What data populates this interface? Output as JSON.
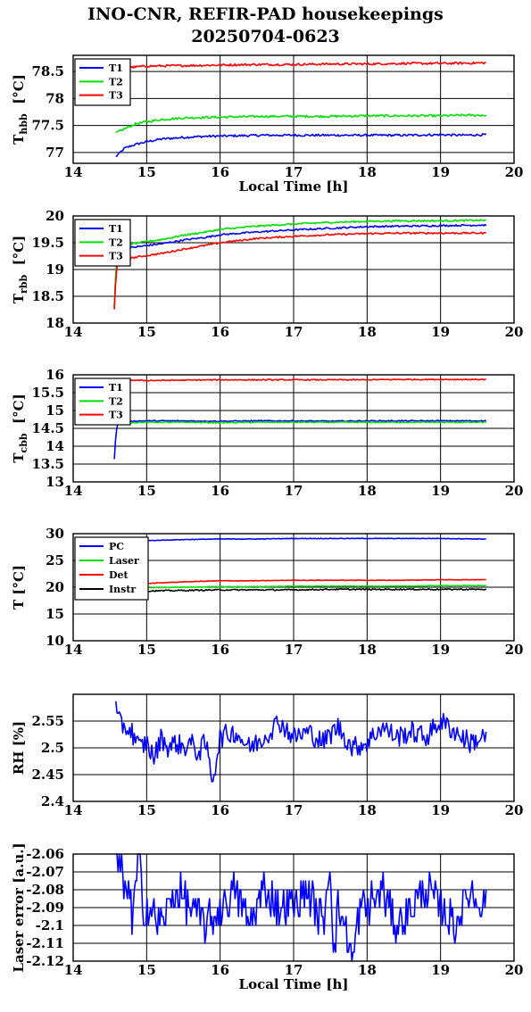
{
  "title": "INO-CNR, REFIR-PAD housekeepings",
  "subtitle": "20250704-0623",
  "chart_data": [
    {
      "type": "line",
      "title": "",
      "xlabel": "Local Time [h]",
      "ylabel": "T",
      "ylabel_sub": "hbb",
      "ylabel_unit": "[°C]",
      "xlim": [
        14,
        20
      ],
      "ylim": [
        76.8,
        78.8
      ],
      "xticks": [
        "14",
        "15",
        "16",
        "17",
        "18",
        "19",
        "20"
      ],
      "yticks": [
        77,
        77.5,
        78,
        78.5
      ],
      "ytick_labels": [
        "77",
        "77.5",
        "78",
        "78.5"
      ],
      "grid": true,
      "legend": "top-left",
      "series": [
        {
          "name": "T1",
          "color": "#0000ff",
          "x": [
            14.58,
            14.7,
            14.85,
            15.0,
            15.2,
            15.5,
            15.8,
            16.2,
            16.6,
            17.0,
            17.5,
            18.0,
            18.5,
            19.0,
            19.3,
            19.62
          ],
          "y": [
            76.92,
            77.08,
            77.15,
            77.2,
            77.25,
            77.28,
            77.3,
            77.31,
            77.32,
            77.32,
            77.32,
            77.32,
            77.32,
            77.33,
            77.32,
            77.33
          ],
          "noise": 0.02
        },
        {
          "name": "T2",
          "color": "#00e000",
          "x": [
            14.58,
            14.7,
            14.85,
            15.0,
            15.2,
            15.5,
            15.8,
            16.2,
            16.6,
            17.0,
            17.5,
            18.0,
            18.5,
            19.0,
            19.3,
            19.62
          ],
          "y": [
            77.36,
            77.44,
            77.53,
            77.57,
            77.61,
            77.64,
            77.65,
            77.66,
            77.67,
            77.67,
            77.67,
            77.68,
            77.68,
            77.68,
            77.69,
            77.69
          ],
          "noise": 0.02
        },
        {
          "name": "T3",
          "color": "#ff0000",
          "x": [
            14.58,
            14.8,
            15.0,
            15.5,
            16.0,
            16.5,
            17.0,
            17.5,
            18.0,
            18.5,
            19.0,
            19.62
          ],
          "y": [
            78.55,
            78.58,
            78.6,
            78.61,
            78.62,
            78.63,
            78.63,
            78.64,
            78.64,
            78.65,
            78.65,
            78.66
          ],
          "noise": 0.02
        }
      ]
    },
    {
      "type": "line",
      "title": "",
      "xlabel": "",
      "ylabel": "T",
      "ylabel_sub": "rbb",
      "ylabel_unit": "[°C]",
      "xlim": [
        14,
        20
      ],
      "ylim": [
        18,
        20
      ],
      "xticks": [
        "14",
        "15",
        "16",
        "17",
        "18",
        "19",
        "20"
      ],
      "yticks": [
        18,
        18.5,
        19,
        19.5,
        20
      ],
      "ytick_labels": [
        "18",
        "18.5",
        "19",
        "19.5",
        "20"
      ],
      "grid": true,
      "legend": "top-left",
      "series": [
        {
          "name": "T1",
          "color": "#0000ff",
          "x": [
            14.56,
            14.58,
            14.6,
            14.65,
            14.9,
            15.2,
            15.5,
            15.8,
            16.0,
            16.5,
            17.0,
            17.5,
            18.0,
            18.5,
            19.0,
            19.62
          ],
          "y": [
            18.3,
            18.9,
            19.3,
            19.38,
            19.43,
            19.48,
            19.55,
            19.6,
            19.65,
            19.7,
            19.74,
            19.77,
            19.8,
            19.81,
            19.82,
            19.83
          ],
          "noise": 0.015
        },
        {
          "name": "T2",
          "color": "#00e000",
          "x": [
            14.56,
            14.58,
            14.6,
            14.65,
            14.9,
            15.2,
            15.5,
            15.8,
            16.0,
            16.5,
            17.0,
            17.5,
            18.0,
            18.5,
            19.0,
            19.62
          ],
          "y": [
            18.3,
            18.95,
            19.35,
            19.43,
            19.5,
            19.56,
            19.64,
            19.7,
            19.75,
            19.81,
            19.85,
            19.88,
            19.9,
            19.91,
            19.91,
            19.92
          ],
          "noise": 0.015
        },
        {
          "name": "T3",
          "color": "#ff0000",
          "x": [
            14.56,
            14.58,
            14.6,
            14.65,
            14.9,
            15.2,
            15.5,
            15.8,
            16.0,
            16.5,
            17.0,
            17.5,
            18.0,
            18.5,
            19.0,
            19.62
          ],
          "y": [
            18.25,
            18.8,
            19.1,
            19.18,
            19.24,
            19.3,
            19.38,
            19.45,
            19.5,
            19.58,
            19.62,
            19.65,
            19.67,
            19.68,
            19.68,
            19.68
          ],
          "noise": 0.015
        }
      ]
    },
    {
      "type": "line",
      "title": "",
      "xlabel": "",
      "ylabel": "T",
      "ylabel_sub": "cbb",
      "ylabel_unit": "[°C]",
      "xlim": [
        14,
        20
      ],
      "ylim": [
        13,
        16
      ],
      "xticks": [
        "14",
        "15",
        "16",
        "17",
        "18",
        "19",
        "20"
      ],
      "yticks": [
        13,
        13.5,
        14,
        14.5,
        15,
        15.5,
        16
      ],
      "ytick_labels": [
        "13",
        "13.5",
        "14",
        "14.5",
        "15",
        "15.5",
        "16"
      ],
      "grid": true,
      "legend": "top-left",
      "series": [
        {
          "name": "T1",
          "color": "#0000ff",
          "x": [
            14.56,
            14.58,
            14.6,
            14.65,
            15.0,
            15.5,
            16.0,
            16.5,
            17.0,
            17.5,
            18.0,
            18.5,
            19.0,
            19.62
          ],
          "y": [
            13.65,
            14.3,
            14.62,
            14.7,
            14.71,
            14.71,
            14.7,
            14.71,
            14.71,
            14.7,
            14.71,
            14.71,
            14.71,
            14.71
          ],
          "noise": 0.015
        },
        {
          "name": "T2",
          "color": "#00e000",
          "x": [
            14.58,
            14.6,
            14.65,
            15.0,
            15.5,
            16.0,
            16.5,
            17.0,
            17.5,
            18.0,
            18.5,
            19.0,
            19.62
          ],
          "y": [
            14.6,
            14.65,
            14.66,
            14.67,
            14.67,
            14.66,
            14.67,
            14.67,
            14.67,
            14.67,
            14.67,
            14.67,
            14.67
          ],
          "noise": 0.015
        },
        {
          "name": "T3",
          "color": "#ff0000",
          "x": [
            14.58,
            14.8,
            15.0,
            15.5,
            16.0,
            16.5,
            17.0,
            17.5,
            18.0,
            18.5,
            19.0,
            19.62
          ],
          "y": [
            15.88,
            15.85,
            15.84,
            15.85,
            15.86,
            15.86,
            15.86,
            15.86,
            15.86,
            15.87,
            15.87,
            15.87
          ],
          "noise": 0.015
        }
      ]
    },
    {
      "type": "line",
      "title": "",
      "xlabel": "",
      "ylabel": "T [°C]",
      "ylabel_sub": "",
      "ylabel_unit": "",
      "xlim": [
        14,
        20
      ],
      "ylim": [
        10,
        30
      ],
      "xticks": [
        "14",
        "15",
        "16",
        "17",
        "18",
        "19",
        "20"
      ],
      "yticks": [
        10,
        15,
        20,
        25,
        30
      ],
      "ytick_labels": [
        "10",
        "15",
        "20",
        "25",
        "30"
      ],
      "grid": true,
      "legend": "top-left",
      "series": [
        {
          "name": "PC",
          "color": "#0000ff",
          "x": [
            14.58,
            14.8,
            15.0,
            15.5,
            16.0,
            16.5,
            17.0,
            17.5,
            18.0,
            18.5,
            19.0,
            19.62
          ],
          "y": [
            28.2,
            28.5,
            28.7,
            28.9,
            29.0,
            29.0,
            29.1,
            29.1,
            29.1,
            29.1,
            29.1,
            29.0
          ],
          "noise": 0.05
        },
        {
          "name": "Laser",
          "color": "#00e000",
          "x": [
            14.58,
            15.0,
            15.5,
            16.0,
            16.5,
            17.0,
            17.5,
            18.0,
            18.5,
            19.0,
            19.62
          ],
          "y": [
            19.7,
            19.9,
            20.0,
            20.1,
            20.1,
            20.2,
            20.2,
            20.2,
            20.2,
            20.3,
            20.3
          ],
          "noise": 0.05
        },
        {
          "name": "Det",
          "color": "#ff0000",
          "x": [
            14.58,
            15.0,
            15.5,
            16.0,
            16.5,
            17.0,
            17.5,
            18.0,
            18.5,
            19.0,
            19.62
          ],
          "y": [
            20.4,
            20.7,
            21.0,
            21.2,
            21.2,
            21.3,
            21.3,
            21.3,
            21.3,
            21.4,
            21.4
          ],
          "noise": 0.05
        },
        {
          "name": "Instr",
          "color": "#000000",
          "x": [
            14.58,
            15.0,
            15.5,
            16.0,
            16.5,
            17.0,
            17.5,
            18.0,
            18.5,
            19.0,
            19.62
          ],
          "y": [
            19.1,
            19.3,
            19.4,
            19.5,
            19.5,
            19.5,
            19.6,
            19.6,
            19.6,
            19.6,
            19.6
          ],
          "noise": 0.12
        }
      ]
    },
    {
      "type": "line",
      "title": "",
      "xlabel": "",
      "ylabel": "RH [%]",
      "ylabel_sub": "",
      "ylabel_unit": "",
      "xlim": [
        14,
        20
      ],
      "ylim": [
        2.4,
        2.6
      ],
      "xticks": [
        "14",
        "15",
        "16",
        "17",
        "18",
        "19",
        "20"
      ],
      "yticks": [
        2.4,
        2.45,
        2.5,
        2.55
      ],
      "ytick_labels": [
        "2.4",
        "2.45",
        "2.5",
        "2.55"
      ],
      "grid": true,
      "legend": "none",
      "series": [
        {
          "name": "",
          "color": "#0000ff",
          "x": [
            14.58,
            14.6,
            14.7,
            14.8,
            14.9,
            15.0,
            15.1,
            15.2,
            15.3,
            15.4,
            15.5,
            15.6,
            15.7,
            15.8,
            15.9,
            16.0,
            16.2,
            16.4,
            16.6,
            16.8,
            17.0,
            17.2,
            17.4,
            17.6,
            17.8,
            18.0,
            18.2,
            18.4,
            18.6,
            18.8,
            19.0,
            19.2,
            19.4,
            19.6,
            19.62
          ],
          "y": [
            2.585,
            2.55,
            2.54,
            2.53,
            2.5,
            2.51,
            2.48,
            2.52,
            2.5,
            2.51,
            2.5,
            2.51,
            2.49,
            2.51,
            2.44,
            2.52,
            2.53,
            2.5,
            2.52,
            2.55,
            2.52,
            2.53,
            2.51,
            2.54,
            2.5,
            2.51,
            2.54,
            2.52,
            2.53,
            2.52,
            2.55,
            2.53,
            2.51,
            2.52,
            2.52
          ],
          "noise": 0.02
        }
      ]
    },
    {
      "type": "line",
      "title": "",
      "xlabel": "Local Time [h]",
      "ylabel": "Laser error [a.u.]",
      "ylabel_sub": "",
      "ylabel_unit": "",
      "xlim": [
        14,
        20
      ],
      "ylim": [
        -2.12,
        -2.06
      ],
      "xticks": [
        "14",
        "15",
        "16",
        "17",
        "18",
        "19",
        "20"
      ],
      "yticks": [
        -2.12,
        -2.11,
        -2.1,
        -2.09,
        -2.08,
        -2.07,
        -2.06
      ],
      "ytick_labels": [
        "-2.12",
        "-2.11",
        "-2.1",
        "-2.09",
        "-2.08",
        "-2.07",
        "-2.06"
      ],
      "grid": true,
      "legend": "none",
      "series": [
        {
          "name": "",
          "color": "#0000ff",
          "x": [
            14.58,
            14.62,
            14.66,
            14.7,
            14.75,
            14.8,
            14.85,
            14.9,
            14.95,
            15.0,
            15.2,
            15.4,
            15.6,
            15.8,
            16.0,
            16.2,
            16.4,
            16.6,
            16.8,
            17.0,
            17.2,
            17.4,
            17.5,
            17.55,
            17.6,
            17.7,
            17.8,
            17.9,
            18.0,
            18.2,
            18.4,
            18.6,
            18.8,
            19.0,
            19.2,
            19.4,
            19.6,
            19.62
          ],
          "y": [
            -2.06,
            -2.075,
            -2.06,
            -2.09,
            -2.07,
            -2.1,
            -2.08,
            -2.06,
            -2.09,
            -2.09,
            -2.1,
            -2.08,
            -2.09,
            -2.1,
            -2.09,
            -2.08,
            -2.1,
            -2.08,
            -2.09,
            -2.09,
            -2.08,
            -2.1,
            -2.06,
            -2.12,
            -2.09,
            -2.1,
            -2.12,
            -2.09,
            -2.09,
            -2.08,
            -2.1,
            -2.09,
            -2.08,
            -2.09,
            -2.1,
            -2.08,
            -2.09,
            -2.08
          ],
          "levels": [
            -2.06,
            -2.07,
            -2.075,
            -2.08,
            -2.085,
            -2.09,
            -2.095,
            -2.1,
            -2.105,
            -2.11,
            -2.115,
            -2.12
          ],
          "quantized": true
        }
      ]
    }
  ]
}
